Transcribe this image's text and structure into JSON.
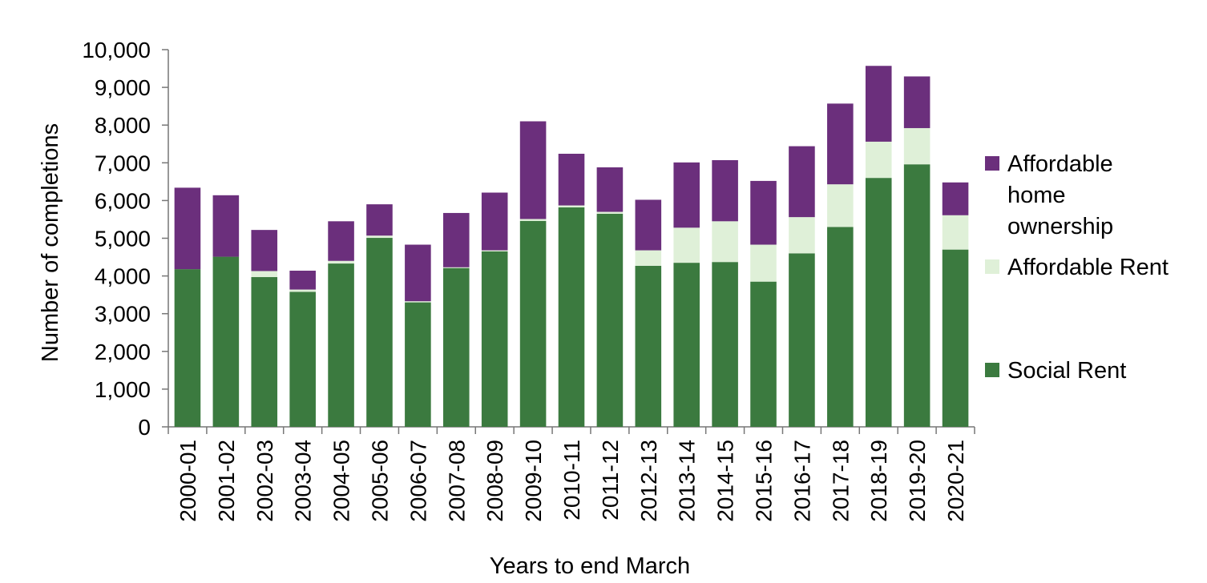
{
  "chart_data": {
    "type": "bar",
    "stacked": true,
    "title": "",
    "xlabel": "Years to end March",
    "ylabel": "Number of completions",
    "ylim": [
      0,
      10000
    ],
    "yticks": [
      0,
      1000,
      2000,
      3000,
      4000,
      5000,
      6000,
      7000,
      8000,
      9000,
      10000
    ],
    "ytick_labels": [
      "0",
      "1,000",
      "2,000",
      "3,000",
      "4,000",
      "5,000",
      "6,000",
      "7,000",
      "8,000",
      "9,000",
      "10,000"
    ],
    "grid": false,
    "legend_position": "right",
    "categories": [
      "2000-01",
      "2001-02",
      "2002-03",
      "2003-04",
      "2004-05",
      "2005-06",
      "2006-07",
      "2007-08",
      "2008-09",
      "2009-10",
      "2010-11",
      "2011-12",
      "2012-13",
      "2013-14",
      "2014-15",
      "2015-16",
      "2016-17",
      "2017-18",
      "2018-19",
      "2019-20",
      "2020-21"
    ],
    "series": [
      {
        "name": "Social Rent",
        "color": "#3b7a3f",
        "values": [
          4180,
          4510,
          3970,
          3580,
          4330,
          5010,
          3300,
          4210,
          4650,
          5460,
          5820,
          5650,
          4270,
          4350,
          4370,
          3850,
          4600,
          5300,
          6600,
          6960,
          4700
        ]
      },
      {
        "name": "Affordable Rent",
        "color": "#dff0d8",
        "values": [
          0,
          0,
          160,
          60,
          70,
          60,
          30,
          20,
          30,
          50,
          50,
          50,
          410,
          930,
          1080,
          980,
          960,
          1130,
          960,
          960,
          910
        ]
      },
      {
        "name": "Affordable home ownership",
        "legend_lines": [
          "Affordable",
          "home",
          "ownership"
        ],
        "color": "#6b2f7c",
        "values": [
          2160,
          1630,
          1090,
          500,
          1050,
          830,
          1500,
          1440,
          1530,
          2590,
          1370,
          1180,
          1340,
          1730,
          1620,
          1690,
          1880,
          2140,
          2010,
          1370,
          870
        ]
      }
    ]
  }
}
